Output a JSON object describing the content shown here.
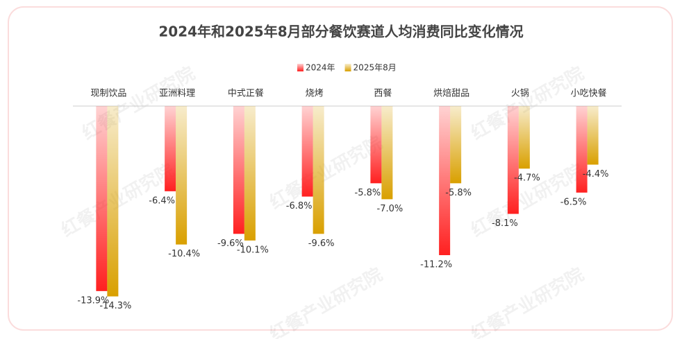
{
  "chart_data": {
    "type": "bar",
    "title": "2024年和2025年8月部分餐饮赛道人均消费同比变化情况",
    "watermark": "红餐产业研究院",
    "categories": [
      "现制饮品",
      "亚洲料理",
      "中式正餐",
      "烧烤",
      "西餐",
      "烘焙甜品",
      "火锅",
      "小吃快餐"
    ],
    "series": [
      {
        "name": "2024年",
        "color": "#ff2020",
        "values": [
          -13.9,
          -6.4,
          -9.6,
          -6.8,
          -5.8,
          -11.2,
          -8.1,
          -6.5
        ],
        "value_labels": [
          "-13.9%",
          "-6.4%",
          "-9.6%",
          "-6.8%",
          "-5.8%",
          "-11.2%",
          "-8.1%",
          "-6.5%"
        ]
      },
      {
        "name": "2025年8月",
        "color": "#d9a000",
        "values": [
          -14.3,
          -10.4,
          -10.1,
          -9.6,
          -7.0,
          -5.8,
          -4.7,
          -4.4
        ],
        "value_labels": [
          "-14.3%",
          "-10.4%",
          "-10.1%",
          "-9.6%",
          "-7.0%",
          "-5.8%",
          "-4.7%",
          "-4.4%"
        ]
      }
    ],
    "ylim": [
      -15,
      0
    ],
    "legend": "top"
  }
}
